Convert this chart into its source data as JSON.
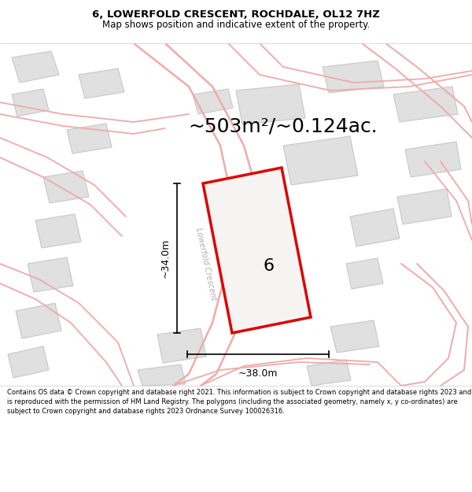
{
  "title_line1": "6, LOWERFOLD CRESCENT, ROCHDALE, OL12 7HZ",
  "title_line2": "Map shows position and indicative extent of the property.",
  "area_text": "~503m²/~0.124ac.",
  "label_number": "6",
  "dim_width": "~38.0m",
  "dim_height": "~34.0m",
  "street_name": "Lowerfold Crescent",
  "footer_text": "Contains OS data © Crown copyright and database right 2021. This information is subject to Crown copyright and database rights 2023 and is reproduced with the permission of HM Land Registry. The polygons (including the associated geometry, namely x, y co-ordinates) are subject to Crown copyright and database rights 2023 Ordnance Survey 100026316.",
  "bg_color": "#f7f6f4",
  "map_bg": "#f7f6f4",
  "plot_color": "#dd0000",
  "road_color": "#f0aaaa",
  "building_fill": "#e0e0e0",
  "building_edge": "#c8c8c8",
  "footer_bg": "#ffffff",
  "title_bg": "#ffffff",
  "title_fontsize": 9.5,
  "subtitle_fontsize": 8.5,
  "area_fontsize": 18,
  "dim_fontsize": 9,
  "label_fontsize": 16,
  "street_fontsize": 7
}
